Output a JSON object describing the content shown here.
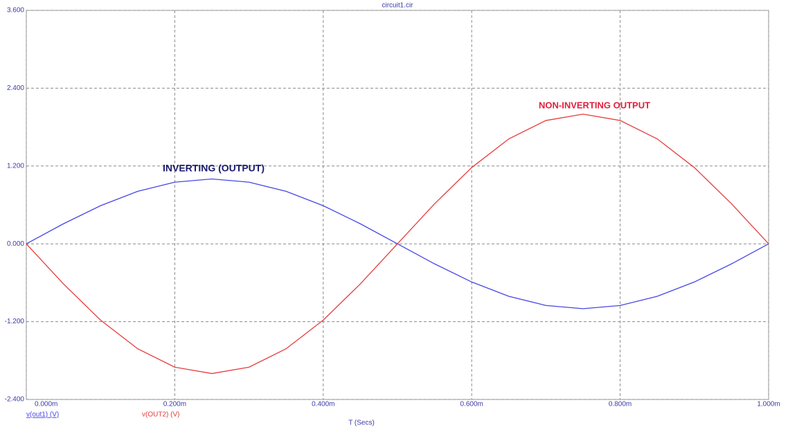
{
  "chart_data": {
    "type": "line",
    "title": "circuit1.cir",
    "x_label": "T (Secs)",
    "x": [
      0,
      5e-05,
      0.0001,
      0.00015,
      0.0002,
      0.00025,
      0.0003,
      0.00035,
      0.0004,
      0.00045,
      0.0005,
      0.00055,
      0.0006,
      0.00065,
      0.0007,
      0.00075,
      0.0008,
      0.00085,
      0.0009,
      0.00095,
      0.001
    ],
    "series": [
      {
        "name": "v(out1) (V)",
        "color": "#4646e6",
        "values": [
          0,
          0.309,
          0.588,
          0.809,
          0.951,
          1.0,
          0.951,
          0.809,
          0.588,
          0.309,
          0,
          -0.309,
          -0.588,
          -0.809,
          -0.951,
          -1.0,
          -0.951,
          -0.809,
          -0.588,
          -0.309,
          0
        ]
      },
      {
        "name": "v(OUT2) (V)",
        "color": "#e63c3c",
        "values": [
          0,
          -0.618,
          -1.176,
          -1.618,
          -1.902,
          -2.0,
          -1.902,
          -1.618,
          -1.176,
          -0.618,
          0,
          0.618,
          1.176,
          1.618,
          1.902,
          2.0,
          1.902,
          1.618,
          1.176,
          0.618,
          0
        ]
      }
    ],
    "annotations": [
      {
        "text": "INVERTING (OUTPUT)",
        "color": "#1a1a6e"
      },
      {
        "text": "NON-INVERTING OUTPUT",
        "color": "#e0203c"
      }
    ],
    "xlim": [
      0,
      0.001
    ],
    "ylim": [
      -2.4,
      3.6
    ],
    "xticks": [
      {
        "value": 0,
        "label": "0.000m"
      },
      {
        "value": 0.0002,
        "label": "0.200m"
      },
      {
        "value": 0.0004,
        "label": "0.400m"
      },
      {
        "value": 0.0006,
        "label": "0.600m"
      },
      {
        "value": 0.0008,
        "label": "0.800m"
      },
      {
        "value": 0.001,
        "label": "1.000m"
      }
    ],
    "yticks": [
      {
        "value": -2.4,
        "label": "-2.400"
      },
      {
        "value": -1.2,
        "label": "-1.200"
      },
      {
        "value": 0,
        "label": "0.000"
      },
      {
        "value": 1.2,
        "label": "1.200"
      },
      {
        "value": 2.4,
        "label": "2.400"
      },
      {
        "value": 3.6,
        "label": "3.600"
      }
    ],
    "grid": true
  }
}
